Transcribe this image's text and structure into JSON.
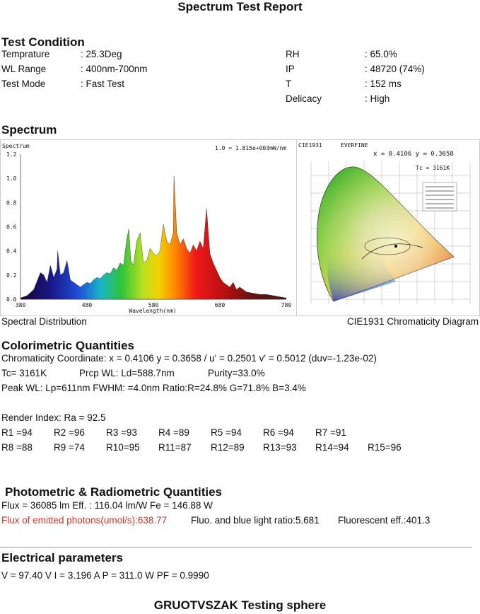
{
  "report_title": "Spectrum Test Report",
  "test_condition": {
    "heading": "Test Condition",
    "rows_left": [
      {
        "label": "Temprature",
        "value": ": 25.3Deg"
      },
      {
        "label": "WL Range",
        "value": ": 400nm-700nm"
      },
      {
        "label": "Test Mode",
        "value": ": Fast Test"
      }
    ],
    "rows_right": [
      {
        "label": "RH",
        "value": ": 65.0%"
      },
      {
        "label": "IP",
        "value": ": 48720 (74%)"
      },
      {
        "label": "T",
        "value": ": 152 ms"
      },
      {
        "label": "Delicacy",
        "value": ": High"
      }
    ]
  },
  "spectrum": {
    "heading": "Spectrum",
    "left_caption": "Spectral Distribution",
    "right_caption": "CIE1931 Chromaticity Diagram"
  },
  "chart_data": {
    "type": "area",
    "title": "",
    "corner_label": "Spectrum",
    "scale_note": "1.0 = 1.815e+003mW/nm",
    "xlabel": "Wavelength(nm)",
    "ylabel": "",
    "xlim": [
      380,
      780
    ],
    "ylim": [
      0,
      1.2
    ],
    "x_ticks": [
      "380",
      "480",
      "580",
      "680",
      "780"
    ],
    "y_ticks": [
      "0.0",
      "0.2",
      "0.4",
      "0.6",
      "0.8",
      "1.0",
      "1.2"
    ],
    "x": [
      380,
      390,
      400,
      405,
      410,
      415,
      420,
      425,
      430,
      435,
      436,
      440,
      445,
      450,
      455,
      460,
      465,
      470,
      475,
      480,
      485,
      490,
      495,
      500,
      505,
      510,
      515,
      520,
      525,
      530,
      535,
      540,
      543,
      546,
      550,
      555,
      560,
      565,
      570,
      575,
      580,
      585,
      590,
      595,
      600,
      605,
      610,
      611,
      615,
      620,
      625,
      630,
      635,
      640,
      645,
      650,
      655,
      660,
      665,
      670,
      675,
      680,
      685,
      690,
      695,
      700,
      705,
      710,
      720,
      730,
      740,
      750,
      760,
      770,
      780
    ],
    "series": [
      {
        "values": [
          0.01,
          0.03,
          0.08,
          0.15,
          0.22,
          0.2,
          0.14,
          0.28,
          0.18,
          0.25,
          0.4,
          0.2,
          0.22,
          0.32,
          0.16,
          0.14,
          0.12,
          0.1,
          0.12,
          0.14,
          0.13,
          0.16,
          0.18,
          0.17,
          0.2,
          0.22,
          0.21,
          0.26,
          0.24,
          0.3,
          0.28,
          0.5,
          0.58,
          0.32,
          0.28,
          0.48,
          0.55,
          0.3,
          0.32,
          0.42,
          0.38,
          0.36,
          0.4,
          0.62,
          0.48,
          0.45,
          0.55,
          1.02,
          0.55,
          0.45,
          0.5,
          0.42,
          0.38,
          0.45,
          0.4,
          0.48,
          0.42,
          0.75,
          0.38,
          0.3,
          0.24,
          0.18,
          0.14,
          0.12,
          0.1,
          0.14,
          0.08,
          0.1,
          0.06,
          0.05,
          0.04,
          0.04,
          0.03,
          0.02,
          0.01
        ]
      }
    ]
  },
  "cie": {
    "header_left": "CIE1931",
    "header_brand": "EVERFINE",
    "coord_text": "x = 0.4106 y = 0.3658",
    "tc_text": "Tc = 3161K"
  },
  "colorimetric": {
    "heading": "Colorimetric Quantities",
    "line1": "Chromaticity Coordinate: x = 0.4106 y = 0.3658 / u' = 0.2501 v' = 0.5012 (duv=-1.23e-02)",
    "line2_parts": [
      "Tc=  3161K",
      "Prcp WL:   Ld=588.7nm",
      "Purity=33.0%"
    ],
    "line3": "Peak WL:  Lp=611nm  FWHM:   =4.0nm  Ratio:R=24.8% G=71.8% B=3.4%",
    "render_index": "Render Index: Ra = 92.5",
    "r_row1": [
      "R1 =94",
      "R2 =96",
      "R3 =93",
      "R4 =89",
      "R5 =94",
      "R6 =94",
      "R7 =91"
    ],
    "r_row2": [
      "R8 =88",
      "R9 =74",
      "R10=95",
      "R11=87",
      "R12=89",
      "R13=93",
      "R14=94",
      "R15=96"
    ]
  },
  "photometric": {
    "heading": "Photometric & Radiometric Quantities",
    "line1": "Flux  = 36085 lm   Eff. : 116.04 lm/W  Fe  = 146.88 W",
    "photon_flux": "Flux of emitted photons(umol/s):638.77",
    "fluo_ratio": "Fluo. and blue light ratio:5.681",
    "fluo_eff": "Fluorescent eff.:401.3"
  },
  "electrical": {
    "heading": "Electrical parameters",
    "line1": "V = 97.40 V     I = 3.196 A    P = 311.0 W PF = 0.9990"
  },
  "footer": "GRUOTVSZAK Testing sphere"
}
